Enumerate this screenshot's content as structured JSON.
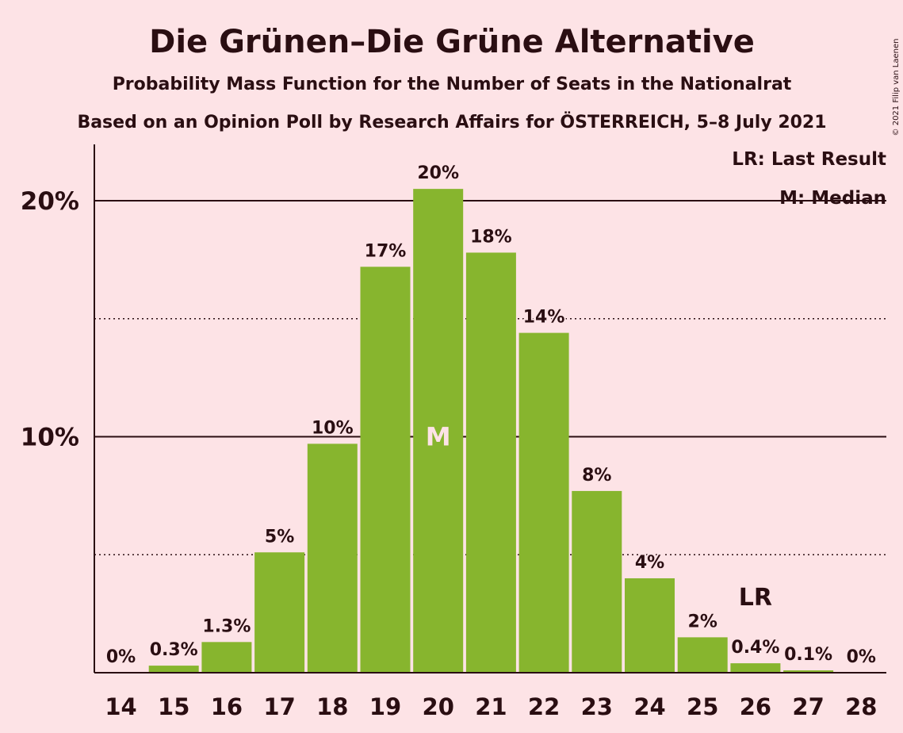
{
  "chart_data": {
    "type": "bar",
    "title": "Die Grünen–Die Grüne Alternative",
    "subtitle": "Probability Mass Function for the Number of Seats in the Nationalrat",
    "subtitle2": "Based on an Opinion Poll by Research Affairs for ÖSTERREICH, 5–8 July 2021",
    "copyright": "© 2021 Filip van Laenen",
    "categories": [
      "14",
      "15",
      "16",
      "17",
      "18",
      "19",
      "20",
      "21",
      "22",
      "23",
      "24",
      "25",
      "26",
      "27",
      "28"
    ],
    "values": [
      0,
      0.3,
      1.3,
      5.1,
      9.7,
      17.2,
      20.5,
      17.8,
      14.4,
      7.7,
      4.0,
      1.5,
      0.4,
      0.1,
      0
    ],
    "labels": [
      "0%",
      "0.3%",
      "1.3%",
      "5%",
      "10%",
      "17%",
      "20%",
      "18%",
      "14%",
      "8%",
      "4%",
      "2%",
      "0.4%",
      "0.1%",
      "0%"
    ],
    "yticks": [
      {
        "value": 10,
        "label": "10%"
      },
      {
        "value": 20,
        "label": "20%"
      }
    ],
    "minor_gridlines": [
      5,
      15
    ],
    "ylim": [
      0,
      22.4
    ],
    "bar_color": "#87B52E",
    "background_color": "#FDE3E6",
    "median": {
      "category": "20",
      "mark": "M"
    },
    "last_result": {
      "category": "26",
      "mark": "LR"
    },
    "legend": {
      "position": "top-right",
      "items": [
        "LR: Last Result",
        "M: Median"
      ]
    }
  }
}
